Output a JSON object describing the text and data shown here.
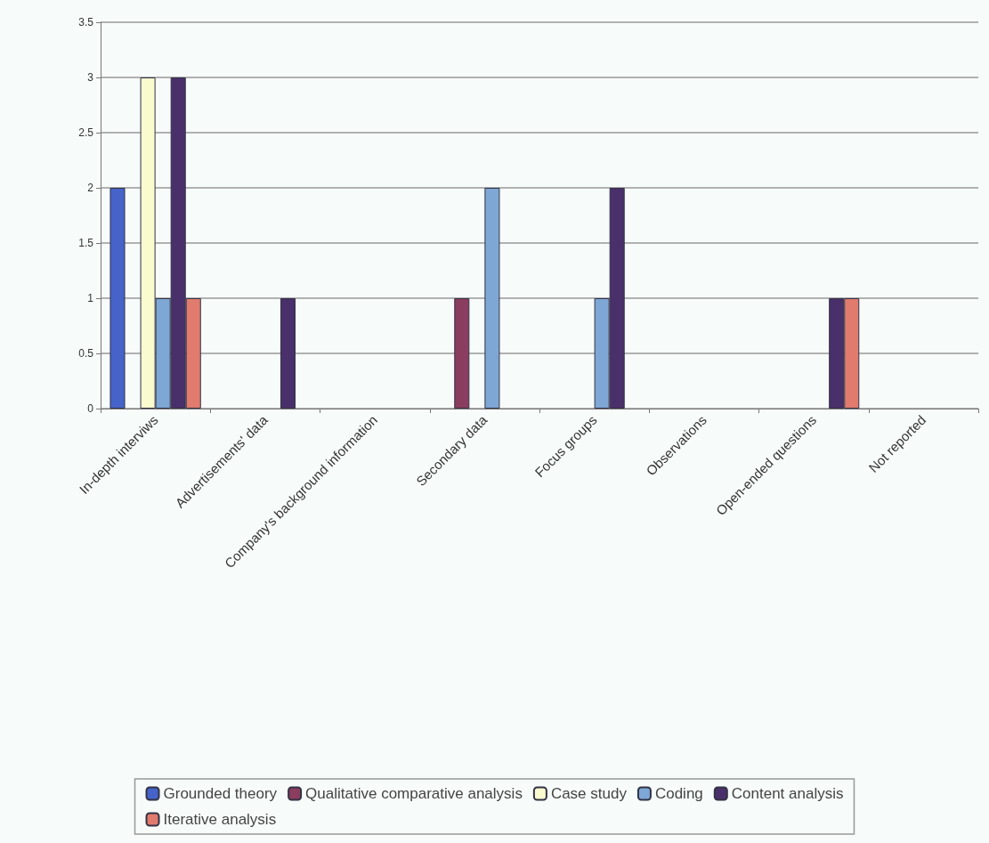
{
  "chart_data": {
    "type": "bar",
    "categories": [
      "In-depth interviws",
      "Advertisements' data",
      "Company's background information",
      "Secondary data",
      "Focus groups",
      "Observations",
      "Open-ended questions",
      "Not reported"
    ],
    "series": [
      {
        "name": "Grounded theory",
        "color": "#4563c9",
        "values": [
          2,
          0,
          0,
          0,
          0,
          0,
          0,
          0
        ]
      },
      {
        "name": "Qualitative comparative analysis",
        "color": "#8a3d5e",
        "values": [
          0,
          0,
          0,
          1,
          0,
          0,
          0,
          0
        ]
      },
      {
        "name": "Case study",
        "color": "#fbfbd0",
        "values": [
          3,
          0,
          0,
          0,
          0,
          0,
          0,
          0
        ]
      },
      {
        "name": "Coding",
        "color": "#7ea7d6",
        "values": [
          1,
          0,
          0,
          2,
          1,
          0,
          0,
          0
        ]
      },
      {
        "name": "Content analysis",
        "color": "#4a306a",
        "values": [
          3,
          1,
          0,
          0,
          2,
          0,
          1,
          0
        ]
      },
      {
        "name": "Iterative analysis",
        "color": "#e07b6e",
        "values": [
          1,
          0,
          0,
          0,
          0,
          0,
          1,
          0
        ]
      }
    ],
    "ylim": [
      0,
      3.5
    ],
    "yticks": [
      0,
      0.5,
      1,
      1.5,
      2,
      2.5,
      3,
      3.5
    ],
    "grid": "y",
    "legend": "bottom"
  }
}
